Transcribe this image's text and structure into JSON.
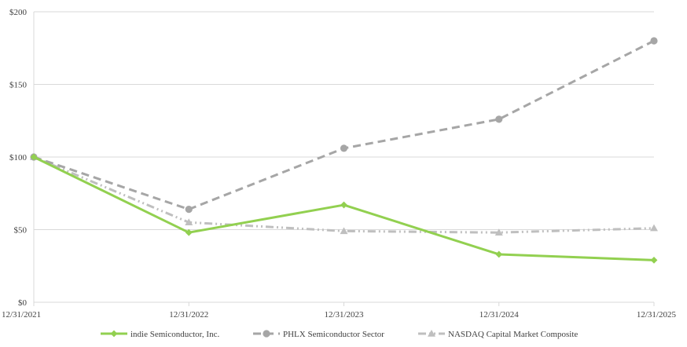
{
  "chart_data": {
    "type": "line",
    "title": "",
    "xlabel": "",
    "ylabel": "",
    "categories": [
      "12/31/2021",
      "12/31/2022",
      "12/31/2023",
      "12/31/2024",
      "12/31/2025"
    ],
    "y_ticks": [
      "$0",
      "$50",
      "$100",
      "$150",
      "$200"
    ],
    "ylim": [
      0,
      200
    ],
    "grid": "horizontal",
    "legend_position": "bottom",
    "series": [
      {
        "name": "indie Semiconductor, Inc.",
        "values": [
          100,
          48,
          67,
          33,
          29
        ],
        "color": "#92d050",
        "marker": "diamond",
        "dash": "solid"
      },
      {
        "name": "PHLX Semiconductor Sector",
        "values": [
          100,
          64,
          106,
          126,
          180
        ],
        "color": "#a6a6a6",
        "marker": "circle",
        "dash": "dashed"
      },
      {
        "name": "NASDAQ Capital Market Composite",
        "values": [
          100,
          55,
          49,
          48,
          51
        ],
        "color": "#bfbfbf",
        "marker": "triangle",
        "dash": "dash-dot-dot"
      }
    ]
  }
}
